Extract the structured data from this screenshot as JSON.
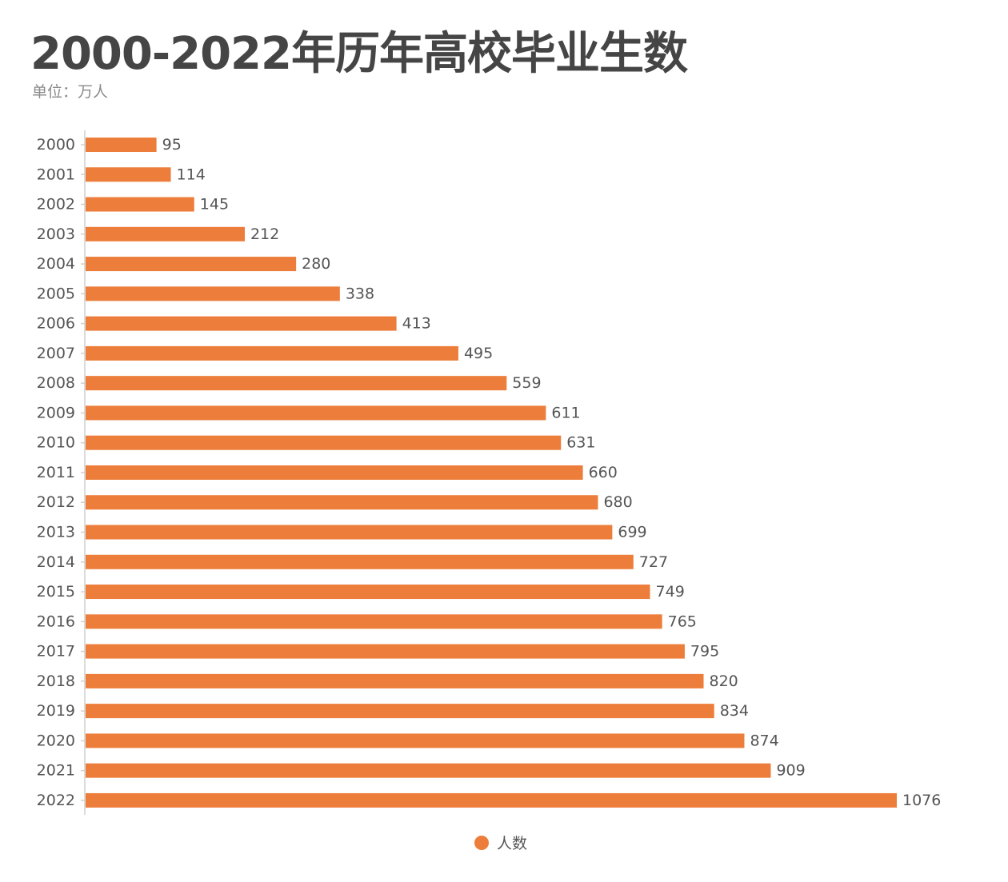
{
  "chart_data": {
    "type": "bar",
    "orientation": "horizontal",
    "title": "2000-2022年历年高校毕业生数",
    "subtitle": "单位：万人",
    "categories": [
      "2000",
      "2001",
      "2002",
      "2003",
      "2004",
      "2005",
      "2006",
      "2007",
      "2008",
      "2009",
      "2010",
      "2011",
      "2012",
      "2013",
      "2014",
      "2015",
      "2016",
      "2017",
      "2018",
      "2019",
      "2020",
      "2021",
      "2022"
    ],
    "series": [
      {
        "name": "人数",
        "color": "#ED7D3A",
        "values": [
          95,
          114,
          145,
          212,
          280,
          338,
          413,
          495,
          559,
          611,
          631,
          660,
          680,
          699,
          727,
          749,
          765,
          795,
          820,
          834,
          874,
          909,
          1076
        ]
      }
    ],
    "xlim": [
      0,
      1076
    ],
    "grid": false,
    "legend_position": "bottom-center"
  }
}
